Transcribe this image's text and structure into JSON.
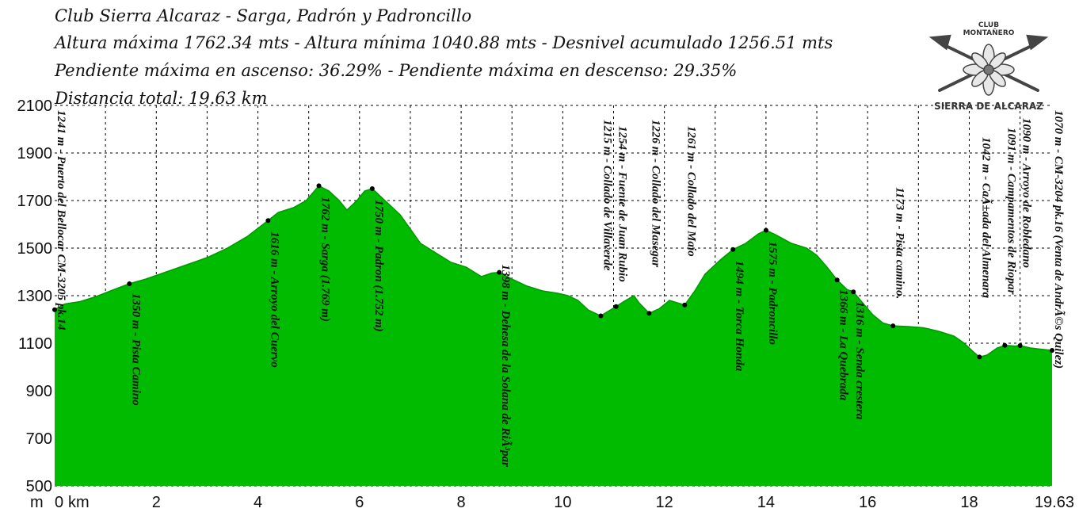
{
  "header": {
    "line1": "Club Sierra Alcaraz - Sarga, Padrón y Padroncillo",
    "line2": "Altura máxima 1762.34 mts - Altura mínima 1040.88 mts - Desnivel acumulado 1256.51 mts",
    "line3": "Pendiente máxima en ascenso: 36.29%  - Pendiente máxima en descenso: 29.35%",
    "line4": "Distancia total: 19.63 km"
  },
  "logo": {
    "top_text": "CLUB",
    "mid_text": "MONTAÑERO",
    "bottom_text": "SIERRA DE ALCARAZ"
  },
  "colors": {
    "fill": "#00bb00",
    "outline": "#000000",
    "grid": "#000000",
    "marker": "#000000"
  },
  "chart_data": {
    "type": "area",
    "title": "",
    "xlabel": "",
    "ylabel": "",
    "y_unit_label": "m",
    "x_unit_label": "km",
    "xlim": [
      0,
      19.63
    ],
    "ylim": [
      500,
      2100
    ],
    "yticks": [
      500,
      700,
      900,
      1100,
      1300,
      1500,
      1700,
      1900,
      2100
    ],
    "xticks": [
      0,
      2,
      4,
      6,
      8,
      10,
      12,
      14,
      16,
      18,
      19.63
    ],
    "xtick_labels": [
      "0",
      "2",
      "4",
      "6",
      "8",
      "10",
      "12",
      "14",
      "16",
      "18",
      "19.63"
    ],
    "grid": true,
    "profile": [
      [
        0,
        1241
      ],
      [
        0.2,
        1265
      ],
      [
        0.5,
        1275
      ],
      [
        0.8,
        1295
      ],
      [
        1.1,
        1320
      ],
      [
        1.47,
        1350
      ],
      [
        1.8,
        1370
      ],
      [
        2.2,
        1400
      ],
      [
        2.6,
        1430
      ],
      [
        3.0,
        1460
      ],
      [
        3.4,
        1500
      ],
      [
        3.8,
        1550
      ],
      [
        4.2,
        1616
      ],
      [
        4.4,
        1650
      ],
      [
        4.7,
        1670
      ],
      [
        4.95,
        1700
      ],
      [
        5.2,
        1762
      ],
      [
        5.4,
        1740
      ],
      [
        5.6,
        1700
      ],
      [
        5.75,
        1660
      ],
      [
        5.95,
        1700
      ],
      [
        6.1,
        1740
      ],
      [
        6.25,
        1750
      ],
      [
        6.5,
        1700
      ],
      [
        6.8,
        1640
      ],
      [
        7.0,
        1580
      ],
      [
        7.2,
        1520
      ],
      [
        7.5,
        1480
      ],
      [
        7.8,
        1440
      ],
      [
        8.1,
        1420
      ],
      [
        8.4,
        1380
      ],
      [
        8.6,
        1395
      ],
      [
        8.75,
        1398
      ],
      [
        9.0,
        1370
      ],
      [
        9.3,
        1340
      ],
      [
        9.6,
        1320
      ],
      [
        9.9,
        1310
      ],
      [
        10.1,
        1300
      ],
      [
        10.3,
        1280
      ],
      [
        10.5,
        1240
      ],
      [
        10.75,
        1215
      ],
      [
        10.9,
        1235
      ],
      [
        11.05,
        1254
      ],
      [
        11.2,
        1275
      ],
      [
        11.4,
        1300
      ],
      [
        11.5,
        1270
      ],
      [
        11.7,
        1226
      ],
      [
        11.9,
        1245
      ],
      [
        12.1,
        1280
      ],
      [
        12.25,
        1270
      ],
      [
        12.4,
        1261
      ],
      [
        12.6,
        1320
      ],
      [
        12.8,
        1390
      ],
      [
        13.1,
        1450
      ],
      [
        13.35,
        1494
      ],
      [
        13.6,
        1520
      ],
      [
        13.85,
        1560
      ],
      [
        14.0,
        1575
      ],
      [
        14.2,
        1555
      ],
      [
        14.5,
        1520
      ],
      [
        14.8,
        1500
      ],
      [
        15.0,
        1470
      ],
      [
        15.2,
        1420
      ],
      [
        15.4,
        1366
      ],
      [
        15.6,
        1325
      ],
      [
        15.72,
        1316
      ],
      [
        15.9,
        1270
      ],
      [
        16.1,
        1220
      ],
      [
        16.3,
        1185
      ],
      [
        16.5,
        1173
      ],
      [
        16.8,
        1170
      ],
      [
        17.1,
        1165
      ],
      [
        17.4,
        1150
      ],
      [
        17.7,
        1130
      ],
      [
        17.9,
        1100
      ],
      [
        18.1,
        1060
      ],
      [
        18.2,
        1042
      ],
      [
        18.35,
        1050
      ],
      [
        18.55,
        1080
      ],
      [
        18.7,
        1091
      ],
      [
        18.9,
        1088
      ],
      [
        19.0,
        1090
      ],
      [
        19.2,
        1080
      ],
      [
        19.4,
        1075
      ],
      [
        19.63,
        1070
      ]
    ],
    "waypoints": [
      {
        "x": 0.0,
        "y": 1241,
        "label": "1241 m - Puerto del Bellocar CM-3205 pk.14"
      },
      {
        "x": 1.47,
        "y": 1350,
        "label": "1350 m - Pista Camino"
      },
      {
        "x": 4.2,
        "y": 1616,
        "label": "1616 m - Arroyo del Cuervo"
      },
      {
        "x": 5.2,
        "y": 1762,
        "label": "1762 m - Sarga (1.769 m)"
      },
      {
        "x": 6.25,
        "y": 1750,
        "label": "1750 m - Padron (1.752 m)"
      },
      {
        "x": 8.75,
        "y": 1398,
        "label": "1398 m - Dehesa de la Solana de RiÃ³par"
      },
      {
        "x": 10.75,
        "y": 1215,
        "label": "1215 m - Collado de Villaverde"
      },
      {
        "x": 11.05,
        "y": 1254,
        "label": "1254 m - Fuente de Juan Rubio"
      },
      {
        "x": 11.7,
        "y": 1226,
        "label": "1226 m - Collado del Masegar"
      },
      {
        "x": 12.4,
        "y": 1261,
        "label": "1261 m - Collado del Maio"
      },
      {
        "x": 13.35,
        "y": 1494,
        "label": "1494 m - Torca Honda"
      },
      {
        "x": 14.0,
        "y": 1575,
        "label": "1575 m - Padroncillo"
      },
      {
        "x": 15.4,
        "y": 1366,
        "label": "1366 m - La Quebrada"
      },
      {
        "x": 15.72,
        "y": 1316,
        "label": "1316 m - Senda crestera"
      },
      {
        "x": 16.5,
        "y": 1173,
        "label": "1173 m - Pista camino."
      },
      {
        "x": 18.2,
        "y": 1042,
        "label": "1042 m - CaÃ±ada del Almenara"
      },
      {
        "x": 18.7,
        "y": 1091,
        "label": "1091 m - Campamentos de Riopar"
      },
      {
        "x": 19.0,
        "y": 1090,
        "label": "1090 m - Arroyo de Robledano"
      },
      {
        "x": 19.63,
        "y": 1070,
        "label": "1070 m - CM-3204 pk.16 (Venta de AndrÃ©s Quilez)"
      }
    ]
  }
}
